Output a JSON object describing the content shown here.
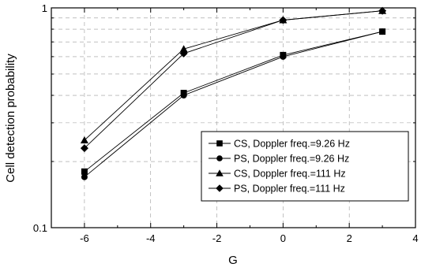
{
  "chart_data": {
    "type": "line",
    "title": "",
    "xlabel": "G",
    "ylabel": "Cell detection probability",
    "xlim": [
      -7,
      4
    ],
    "ylim": [
      0.1,
      1
    ],
    "yscale": "log",
    "x_ticks": [
      -6,
      -4,
      -2,
      0,
      2,
      4
    ],
    "x_tick_labels": [
      "-6",
      "-4",
      "-2",
      "0",
      "2",
      "4"
    ],
    "y_tick_labels": [
      {
        "value": 0.1,
        "label": "0.1"
      },
      {
        "value": 1,
        "label": "1"
      }
    ],
    "y_minor_ticks": [
      0.2,
      0.3,
      0.4,
      0.5,
      0.6,
      0.7,
      0.8,
      0.9
    ],
    "grid": true,
    "legend_position": "bottom-right",
    "x": [
      -6,
      -3,
      0,
      3
    ],
    "series": [
      {
        "name": "CS, Doppler freq.=9.26 Hz",
        "marker": "square",
        "values": [
          0.18,
          0.41,
          0.61,
          0.78
        ]
      },
      {
        "name": "PS, Doppler freq.=9.26 Hz",
        "marker": "circle",
        "values": [
          0.17,
          0.4,
          0.6,
          0.78
        ]
      },
      {
        "name": "CS, Doppler freq.=111 Hz",
        "marker": "triangle",
        "values": [
          0.25,
          0.65,
          0.88,
          0.97
        ]
      },
      {
        "name": "PS, Doppler freq.=111 Hz",
        "marker": "diamond",
        "values": [
          0.23,
          0.62,
          0.88,
          0.97
        ]
      }
    ]
  }
}
